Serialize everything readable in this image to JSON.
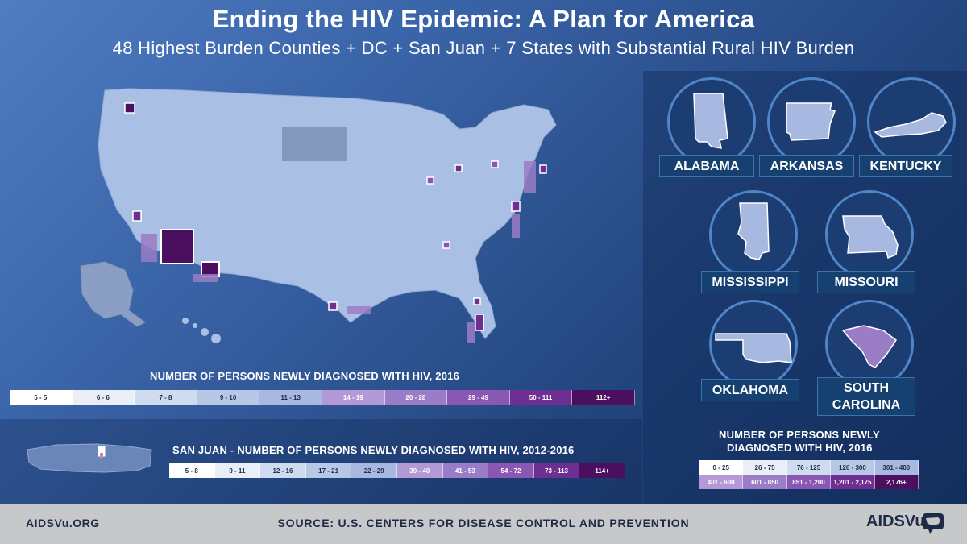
{
  "header": {
    "title": "Ending the HIV Epidemic: A Plan for America",
    "subtitle": "48 Highest Burden Counties + DC + San Juan + 7 States with Substantial Rural HIV Burden"
  },
  "county_legend": {
    "title": "NUMBER OF PERSONS NEWLY DIAGNOSED WITH HIV, 2016",
    "bins": [
      "5 - 5",
      "6 - 6",
      "7 - 8",
      "9 - 10",
      "11 - 13",
      "14 - 19",
      "20 - 28",
      "29 - 49",
      "50 - 111",
      "112+"
    ],
    "colors": [
      "#ffffff",
      "#e9eef7",
      "#cfdbef",
      "#b6c8e6",
      "#a7b9e0",
      "#b39ad6",
      "#9b7cc6",
      "#8a57b5",
      "#6e2f92",
      "#4a0f5e"
    ]
  },
  "san_juan": {
    "title": "SAN JUAN - NUMBER OF PERSONS NEWLY DIAGNOSED WITH HIV, 2012-2016",
    "bins": [
      "5 - 8",
      "9 - 11",
      "12 - 16",
      "17 - 21",
      "22 - 29",
      "30 - 40",
      "41 - 53",
      "54 - 72",
      "73 - 113",
      "114+"
    ],
    "colors": [
      "#ffffff",
      "#e9eef7",
      "#cfdbef",
      "#b6c8e6",
      "#a7b9e0",
      "#b39ad6",
      "#9b7cc6",
      "#8a57b5",
      "#6e2f92",
      "#4a0f5e"
    ]
  },
  "states": [
    {
      "name": "ALABAMA",
      "shape": "alabama-shape"
    },
    {
      "name": "ARKANSAS",
      "shape": "arkansas-shape"
    },
    {
      "name": "KENTUCKY",
      "shape": "kentucky-shape"
    },
    {
      "name": "MISSISSIPPI",
      "shape": "mississippi-shape"
    },
    {
      "name": "MISSOURI",
      "shape": "missouri-shape"
    },
    {
      "name": "OKLAHOMA",
      "shape": "oklahoma-shape"
    },
    {
      "name": "SOUTH CAROLINA",
      "shape": "south-carolina-shape"
    }
  ],
  "state_legend": {
    "title_line1": "NUMBER OF PERSONS NEWLY",
    "title_line2": "DIAGNOSED WITH HIV, 2016",
    "row1": [
      "0 - 25",
      "26 - 75",
      "76 - 125",
      "126 - 300",
      "301 - 400"
    ],
    "row2": [
      "401 - 600",
      "601 - 850",
      "851 - 1,200",
      "1,201 - 2,175",
      "2,176+"
    ],
    "colors_row1": [
      "#ffffff",
      "#e9eef7",
      "#cfdbef",
      "#b6c8e6",
      "#a7b9e0"
    ],
    "colors_row2": [
      "#b39ad6",
      "#9b7cc6",
      "#8a57b5",
      "#6e2f92",
      "#4a0f5e"
    ]
  },
  "footer": {
    "site": "AIDSVu.ORG",
    "source": "SOURCE: U.S. CENTERS FOR DISEASE CONTROL AND PREVENTION",
    "brand": "AIDSVu"
  },
  "colors": {
    "map_base": "#a9bfe3",
    "map_border": "#8ea8d6",
    "dark_purple": "#4a0f5e"
  }
}
